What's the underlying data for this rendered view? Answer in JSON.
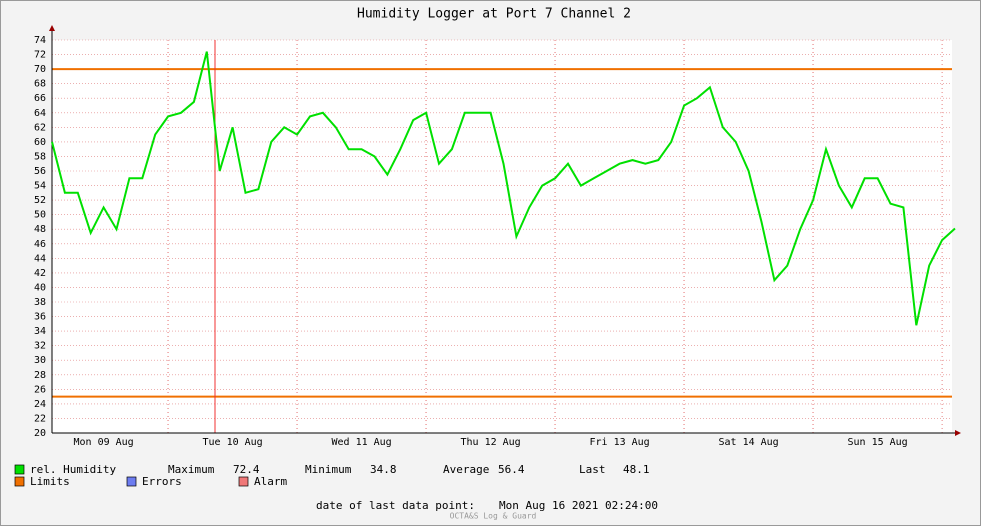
{
  "chart_data": {
    "type": "line",
    "title": "Humidity Logger at Port 7 Channel 2",
    "categories": [
      null,
      null,
      null,
      null,
      "Mon 09 Aug",
      null,
      null,
      null,
      null,
      null,
      null,
      null,
      null,
      null,
      "Tue 10 Aug",
      null,
      null,
      null,
      null,
      null,
      null,
      null,
      null,
      null,
      "Wed 11 Aug",
      null,
      null,
      null,
      null,
      null,
      null,
      null,
      null,
      null,
      "Thu 12 Aug",
      null,
      null,
      null,
      null,
      null,
      null,
      null,
      null,
      null,
      "Fri 13 Aug",
      null,
      null,
      null,
      null,
      null,
      null,
      null,
      null,
      null,
      "Sat 14 Aug",
      null,
      null,
      null,
      null,
      null,
      null,
      null,
      null,
      null,
      "Sun 15 Aug",
      null,
      null,
      null,
      null,
      null,
      null
    ],
    "series": [
      {
        "name": "rel. Humidity",
        "color": "#00e000",
        "values": [
          60,
          53,
          53,
          47.5,
          51,
          48,
          55,
          55,
          61,
          63.5,
          64,
          65.5,
          72.4,
          56,
          62,
          53,
          53.5,
          60,
          62,
          61,
          63.5,
          64,
          62,
          59,
          59,
          58,
          55.5,
          59,
          63,
          64,
          57,
          59,
          64,
          64,
          64,
          57,
          47,
          51,
          54,
          55,
          57,
          54,
          55,
          56,
          57,
          57.5,
          57,
          57.5,
          60,
          65,
          66,
          67.5,
          62,
          60,
          56,
          49,
          41,
          43,
          48,
          52,
          59,
          54,
          51,
          55,
          55,
          51.5,
          51,
          34.8,
          43,
          46.5,
          48.1
        ]
      }
    ],
    "ylim": [
      20,
      74
    ],
    "yticks": [
      20,
      22,
      24,
      26,
      28,
      30,
      32,
      34,
      36,
      38,
      40,
      42,
      44,
      46,
      48,
      50,
      52,
      54,
      56,
      58,
      60,
      62,
      64,
      66,
      68,
      70,
      72,
      74
    ],
    "grid": true,
    "limits": {
      "name": "Limits",
      "color": "#f07000",
      "values": [
        70,
        25
      ]
    },
    "legend_extra": [
      {
        "name": "Errors",
        "color": "#6c7cf0"
      },
      {
        "name": "Alarm",
        "color": "#f07878"
      }
    ],
    "stats": [
      {
        "label": "Maximum",
        "value": "72.4"
      },
      {
        "label": "Minimum",
        "value": "34.8"
      },
      {
        "label": "Average",
        "value": "56.4"
      },
      {
        "label": "Last",
        "value": "48.1"
      }
    ],
    "footer_label": "date of last data point:",
    "footer_value": "Mon Aug 16 2021 02:24:00",
    "watermark": "OCTA&S Log & Guard"
  }
}
